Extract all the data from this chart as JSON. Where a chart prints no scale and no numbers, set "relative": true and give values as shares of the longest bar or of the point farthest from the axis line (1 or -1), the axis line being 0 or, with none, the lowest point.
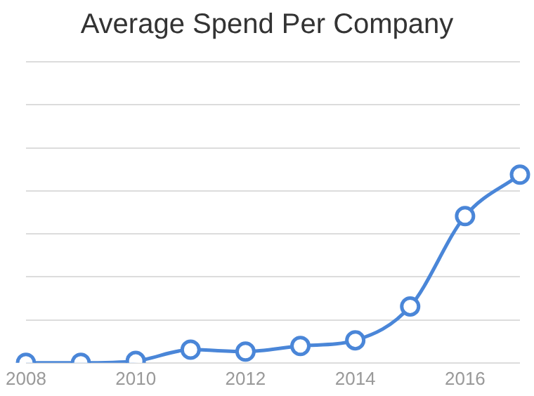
{
  "chart_data": {
    "type": "line",
    "title": "Average Spend Per Company",
    "relative": true,
    "categories": [
      "2008",
      null,
      "2010",
      null,
      "2012",
      null,
      "2014",
      null,
      "2016",
      null
    ],
    "series": [
      {
        "color": "#4a86d8",
        "values": [
          0,
          0,
          0.01,
          0.07,
          0.06,
          0.09,
          0.12,
          0.3,
          0.78,
          1
        ]
      }
    ],
    "grid": "y",
    "marker": "circle",
    "legend": false
  }
}
